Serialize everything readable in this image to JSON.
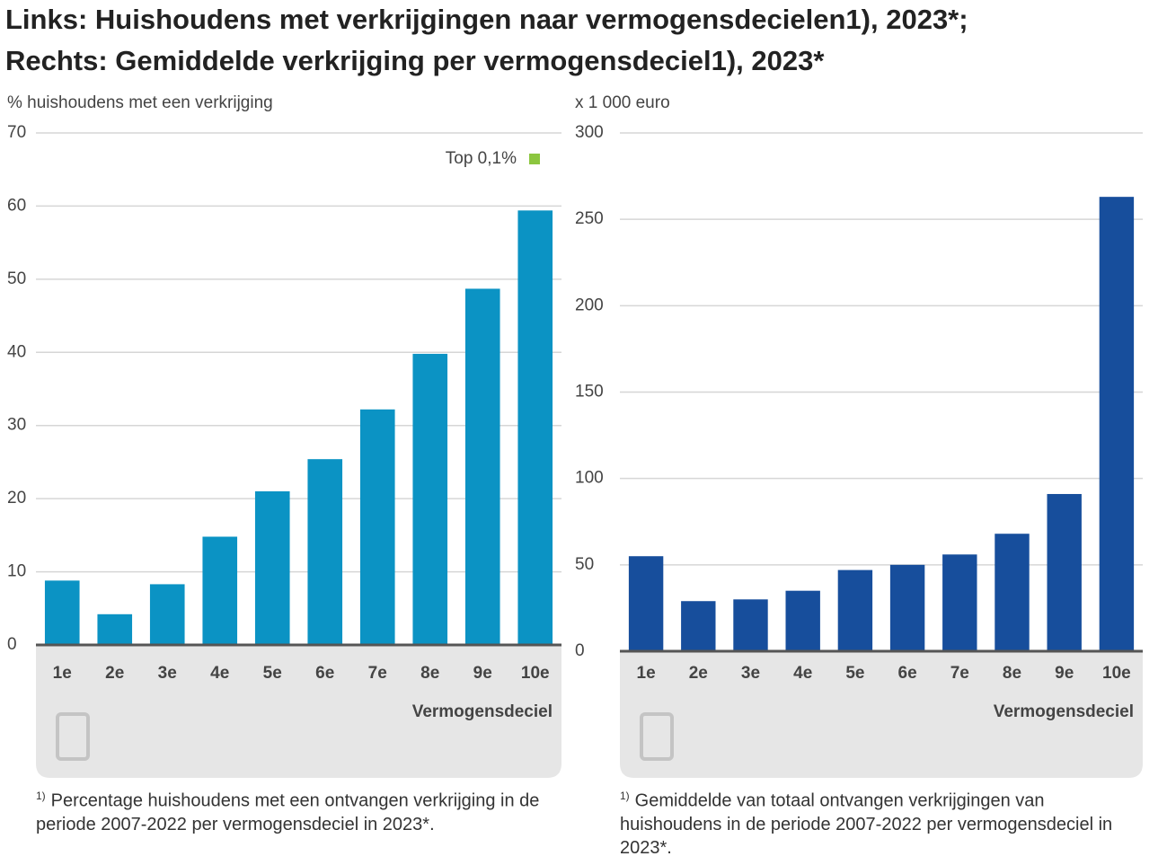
{
  "chart_data": [
    {
      "type": "bar",
      "title": "Links: Huishoudens met verkrijgingen naar vermogensdecielen1), 2023*;",
      "y_label": "% huishoudens met een verkrijging",
      "x_label": "Vermogensdeciel",
      "categories": [
        "1e",
        "2e",
        "3e",
        "4e",
        "5e",
        "6e",
        "7e",
        "8e",
        "9e",
        "10e"
      ],
      "series": [
        {
          "color": "#0b93c4",
          "values": [
            8.8,
            4.2,
            8.3,
            14.8,
            21,
            25.4,
            32.2,
            39.8,
            48.7,
            59.4
          ]
        },
        {
          "name": "Top 0,1%",
          "color": "#8cc63f",
          "values": [
            null,
            null,
            null,
            null,
            null,
            null,
            null,
            null,
            null,
            null
          ]
        }
      ],
      "ylim": [
        0,
        70
      ],
      "yticks": [
        0,
        10,
        20,
        30,
        40,
        50,
        60,
        70
      ],
      "grid": true,
      "footnote_marker": "1)",
      "footnote": "Percentage huishoudens met een ontvangen verkrijging in de periode 2007-2022 per vermogensdeciel in 2023*."
    },
    {
      "type": "bar",
      "title": "Rechts: Gemiddelde verkrijging per vermogensdeciel1), 2023*",
      "y_label": "x 1 000 euro",
      "x_label": "Vermogensdeciel",
      "categories": [
        "1e",
        "2e",
        "3e",
        "4e",
        "5e",
        "6e",
        "7e",
        "8e",
        "9e",
        "10e"
      ],
      "series": [
        {
          "color": "#174e9c",
          "values": [
            55,
            29,
            30,
            35,
            47,
            50,
            56,
            68,
            91,
            263
          ]
        }
      ],
      "ylim": [
        0,
        300
      ],
      "yticks": [
        0,
        50,
        100,
        150,
        200,
        250,
        300
      ],
      "grid": true,
      "footnote_marker": "1)",
      "footnote": "Gemiddelde van totaal ontvangen verkrijgingen van huishoudens in de periode 2007-2022 per vermogensdeciel in 2023*."
    }
  ]
}
